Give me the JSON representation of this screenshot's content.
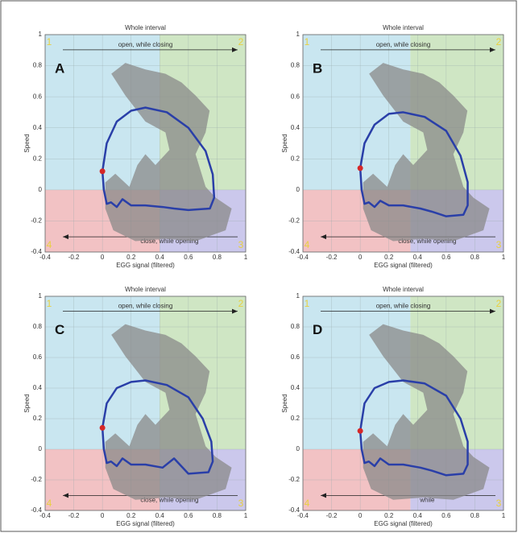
{
  "chart_data": [
    {
      "type": "line",
      "panel": "A",
      "title": "Whole interval",
      "x_label": "EGG signal (filtered)",
      "y_label": "Speed",
      "xlim": [
        -0.4,
        1
      ],
      "ylim": [
        -0.4,
        1
      ],
      "xticks": [
        -0.4,
        -0.2,
        0,
        0.2,
        0.4,
        0.6,
        0.8,
        1
      ],
      "yticks": [
        -0.4,
        -0.2,
        0,
        0.2,
        0.4,
        0.6,
        0.8,
        1
      ],
      "grid": true,
      "split_x": 0.4,
      "quadrant_colors": [
        "#c9e6f0",
        "#cfe6c4",
        "#cbc8ec",
        "#f2c2c4"
      ],
      "quadrant_labels": [
        "1",
        "2",
        "3",
        "4"
      ],
      "annotations": [
        "open, while closing",
        "close, while opening"
      ],
      "series": [
        {
          "color": "#2a3fa8",
          "x": [
            0,
            0.03,
            0.1,
            0.2,
            0.3,
            0.45,
            0.6,
            0.72,
            0.77,
            0.78,
            0.75,
            0.6,
            0.5,
            0.42,
            0.3,
            0.2,
            0.14,
            0.1,
            0.06,
            0.03,
            0.01,
            0
          ],
          "values": [
            0.12,
            0.3,
            0.44,
            0.51,
            0.53,
            0.5,
            0.4,
            0.25,
            0.1,
            -0.05,
            -0.12,
            -0.13,
            -0.12,
            -0.11,
            -0.1,
            -0.1,
            -0.06,
            -0.11,
            -0.08,
            -0.09,
            0,
            0.12
          ]
        }
      ],
      "marker": {
        "color": "#d62828",
        "x": [
          0
        ],
        "values": [
          0.12
        ]
      }
    },
    {
      "type": "line",
      "panel": "B",
      "title": "Whole interval",
      "x_label": "EGG signal (filtered)",
      "y_label": "Speed",
      "xlim": [
        -0.4,
        1
      ],
      "ylim": [
        -0.4,
        1
      ],
      "xticks": [
        -0.4,
        -0.2,
        0,
        0.2,
        0.4,
        0.6,
        0.8,
        1
      ],
      "yticks": [
        -0.4,
        -0.2,
        0,
        0.2,
        0.4,
        0.6,
        0.8,
        1
      ],
      "grid": true,
      "split_x": 0.35,
      "quadrant_colors": [
        "#c9e6f0",
        "#cfe6c4",
        "#cbc8ec",
        "#f2c2c4"
      ],
      "quadrant_labels": [
        "1",
        "2",
        "3",
        "4"
      ],
      "annotations": [
        "open, while closing",
        "close, while opening"
      ],
      "series": [
        {
          "color": "#2a3fa8",
          "x": [
            0,
            0.03,
            0.1,
            0.2,
            0.3,
            0.45,
            0.6,
            0.7,
            0.75,
            0.75,
            0.72,
            0.6,
            0.5,
            0.42,
            0.3,
            0.2,
            0.14,
            0.1,
            0.06,
            0.03,
            0.01,
            0
          ],
          "values": [
            0.14,
            0.3,
            0.42,
            0.49,
            0.5,
            0.47,
            0.38,
            0.22,
            0.05,
            -0.1,
            -0.16,
            -0.17,
            -0.14,
            -0.12,
            -0.1,
            -0.1,
            -0.07,
            -0.11,
            -0.08,
            -0.09,
            0,
            0.14
          ]
        }
      ],
      "marker": {
        "color": "#d62828",
        "x": [
          0
        ],
        "values": [
          0.14
        ]
      }
    },
    {
      "type": "line",
      "panel": "C",
      "title": "Whole interval",
      "x_label": "EGG signal (filtered)",
      "y_label": "Speed",
      "xlim": [
        -0.4,
        1
      ],
      "ylim": [
        -0.4,
        1
      ],
      "xticks": [
        -0.4,
        -0.2,
        0,
        0.2,
        0.4,
        0.6,
        0.8,
        1
      ],
      "yticks": [
        -0.4,
        -0.2,
        0,
        0.2,
        0.4,
        0.6,
        0.8,
        1
      ],
      "grid": true,
      "split_x": 0.4,
      "quadrant_colors": [
        "#c9e6f0",
        "#cfe6c4",
        "#cbc8ec",
        "#f2c2c4"
      ],
      "quadrant_labels": [
        "1",
        "2",
        "3",
        "4"
      ],
      "annotations": [
        "open, while closing",
        "close, while opening"
      ],
      "series": [
        {
          "color": "#2a3fa8",
          "x": [
            0,
            0.03,
            0.1,
            0.2,
            0.3,
            0.45,
            0.6,
            0.7,
            0.76,
            0.77,
            0.74,
            0.6,
            0.5,
            0.42,
            0.3,
            0.2,
            0.14,
            0.1,
            0.06,
            0.03,
            0.01,
            0
          ],
          "values": [
            0.14,
            0.3,
            0.4,
            0.44,
            0.45,
            0.42,
            0.34,
            0.2,
            0.05,
            -0.08,
            -0.15,
            -0.16,
            -0.06,
            -0.12,
            -0.1,
            -0.1,
            -0.06,
            -0.11,
            -0.08,
            -0.09,
            0,
            0.14
          ]
        }
      ],
      "marker": {
        "color": "#d62828",
        "x": [
          0
        ],
        "values": [
          0.14
        ]
      }
    },
    {
      "type": "line",
      "panel": "D",
      "title": "Whole interval",
      "x_label": "EGG signal (filtered)",
      "y_label": "Speed",
      "xlim": [
        -0.4,
        1
      ],
      "ylim": [
        -0.4,
        1
      ],
      "xticks": [
        -0.4,
        -0.2,
        0,
        0.2,
        0.4,
        0.6,
        0.8,
        1
      ],
      "yticks": [
        -0.4,
        -0.2,
        0,
        0.2,
        0.4,
        0.6,
        0.8,
        1
      ],
      "grid": true,
      "split_x": 0.35,
      "quadrant_colors": [
        "#c9e6f0",
        "#cfe6c4",
        "#cbc8ec",
        "#f2c2c4"
      ],
      "quadrant_labels": [
        "1",
        "2",
        "3",
        "4"
      ],
      "annotations": [
        "open, while closing",
        "while"
      ],
      "series": [
        {
          "color": "#2a3fa8",
          "x": [
            0,
            0.03,
            0.1,
            0.2,
            0.3,
            0.45,
            0.6,
            0.7,
            0.75,
            0.75,
            0.72,
            0.6,
            0.5,
            0.42,
            0.3,
            0.2,
            0.14,
            0.1,
            0.06,
            0.03,
            0.01,
            0
          ],
          "values": [
            0.12,
            0.3,
            0.4,
            0.44,
            0.45,
            0.43,
            0.35,
            0.2,
            0.05,
            -0.1,
            -0.16,
            -0.17,
            -0.14,
            -0.12,
            -0.1,
            -0.1,
            -0.06,
            -0.11,
            -0.08,
            -0.09,
            0,
            0.12
          ]
        }
      ],
      "marker": {
        "color": "#d62828",
        "x": [
          0
        ],
        "values": [
          0.12
        ]
      }
    }
  ]
}
